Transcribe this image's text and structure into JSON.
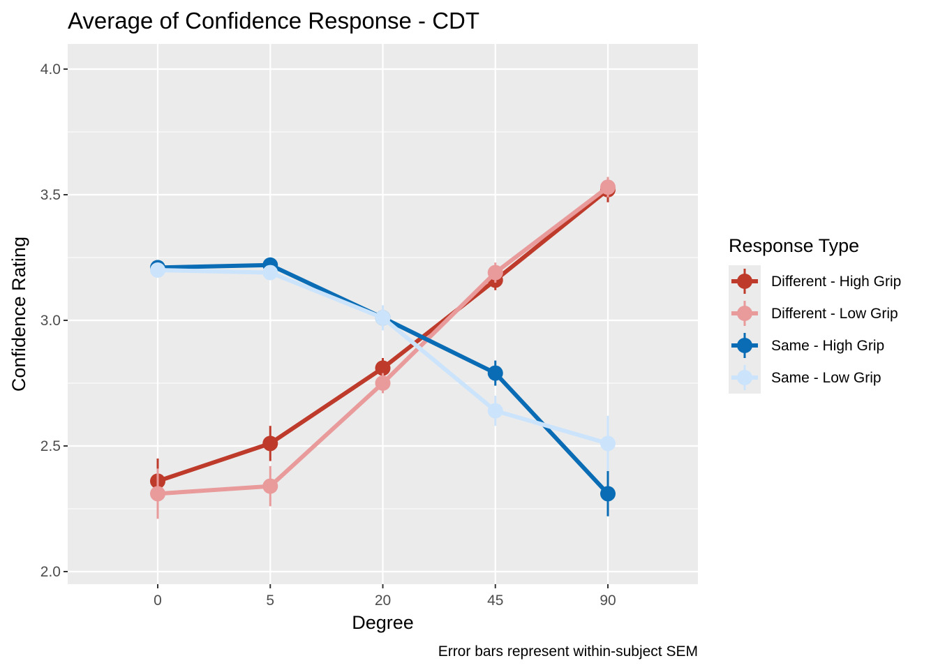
{
  "chart_data": {
    "type": "line",
    "title": "Average of Confidence Response - CDT",
    "xlabel": "Degree",
    "ylabel": "Confidence Rating",
    "caption": "Error bars represent within-subject SEM",
    "categories": [
      "0",
      "5",
      "20",
      "45",
      "90"
    ],
    "ylim": [
      1.95,
      4.1
    ],
    "yticks": [
      2.0,
      2.5,
      3.0,
      3.5,
      4.0
    ],
    "ytick_labels": [
      "2.0",
      "2.5",
      "3.0",
      "3.5",
      "4.0"
    ],
    "grid": true,
    "legend": {
      "title": "Response Type",
      "position": "right"
    },
    "series": [
      {
        "name": "Different - High Grip",
        "color": "#BE3A2A",
        "values": [
          2.36,
          2.51,
          2.81,
          3.16,
          3.52
        ],
        "err": [
          0.09,
          0.07,
          0.04,
          0.04,
          0.05
        ]
      },
      {
        "name": "Different - Low Grip",
        "color": "#E99A9A",
        "values": [
          2.31,
          2.34,
          2.75,
          3.19,
          3.53
        ],
        "err": [
          0.1,
          0.08,
          0.04,
          0.04,
          0.04
        ]
      },
      {
        "name": "Same - High Grip",
        "color": "#0A6CB4",
        "values": [
          3.21,
          3.22,
          3.01,
          2.79,
          2.31
        ],
        "err": [
          0.01,
          0.02,
          0.04,
          0.05,
          0.09
        ]
      },
      {
        "name": "Same - Low Grip",
        "color": "#CCE4FB",
        "values": [
          3.2,
          3.19,
          3.01,
          2.64,
          2.51
        ],
        "err": [
          0.01,
          0.02,
          0.05,
          0.06,
          0.11
        ]
      }
    ]
  }
}
